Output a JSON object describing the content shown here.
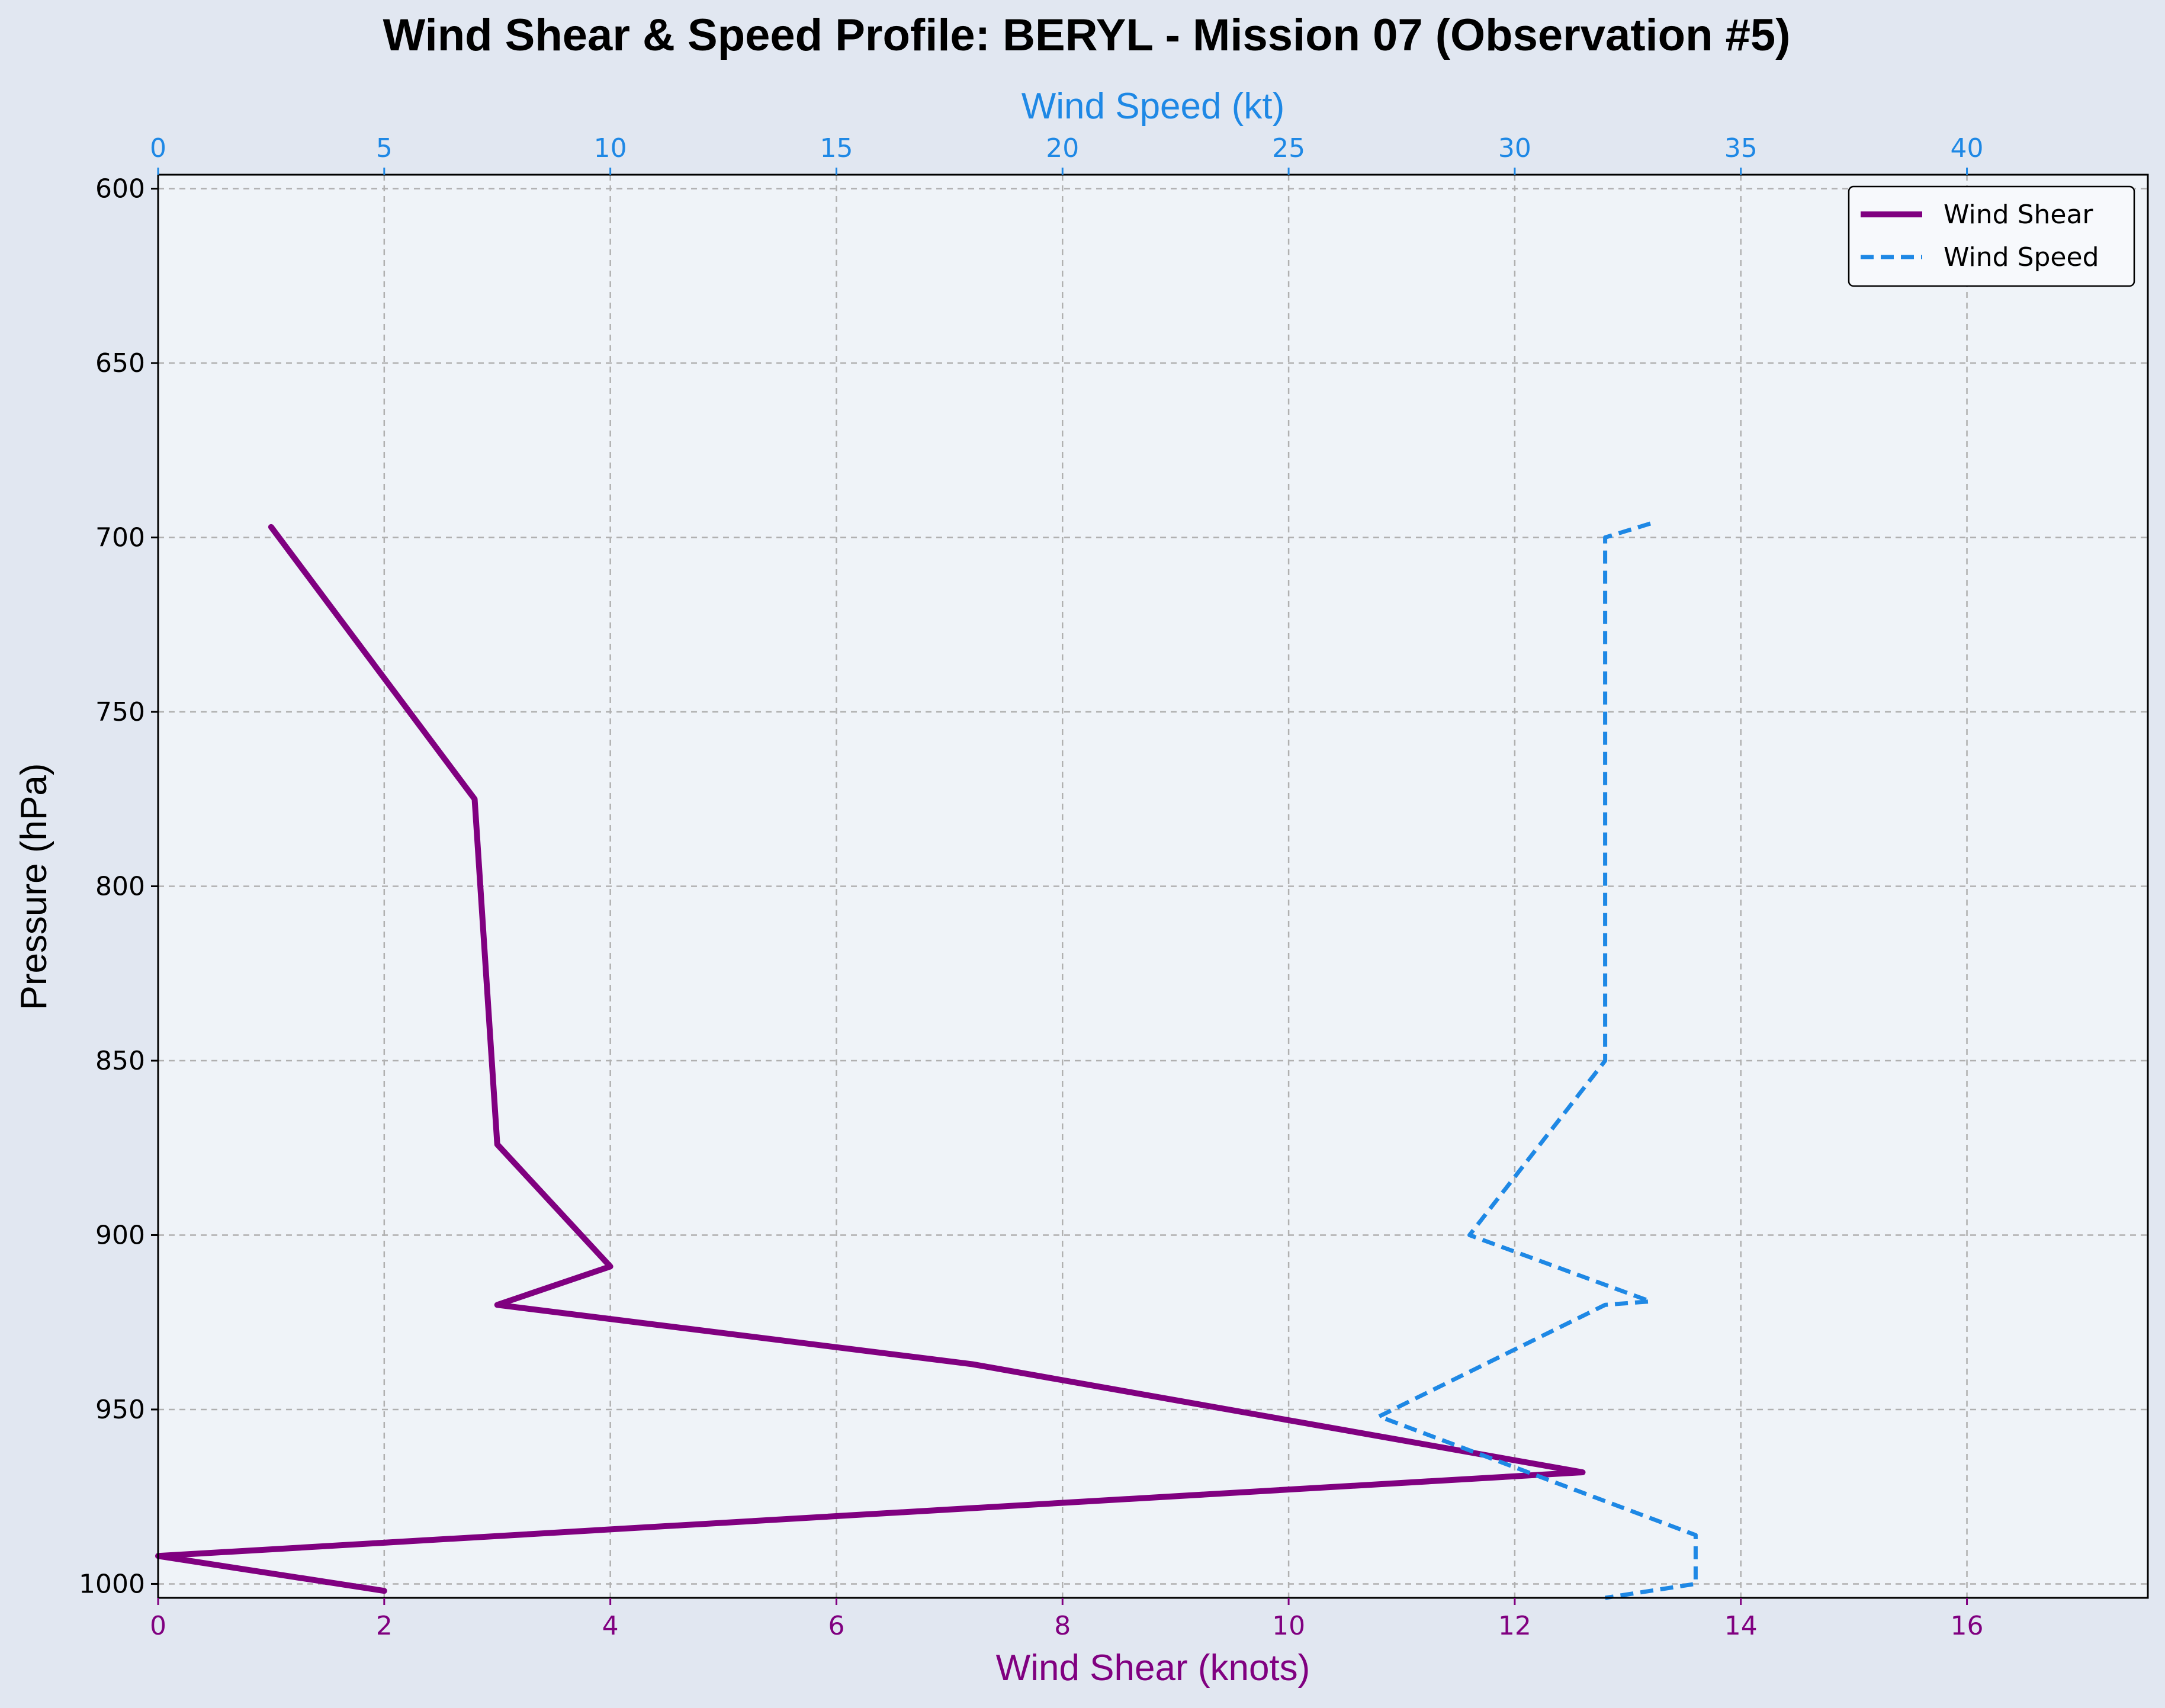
{
  "chart_data": {
    "type": "line",
    "title": "Wind Shear & Speed Profile: BERYL - Mission 07 (Observation #5)",
    "ylabel": "Pressure (hPa)",
    "ylim": [
      1004,
      596
    ],
    "yticks": [
      600,
      650,
      700,
      750,
      800,
      850,
      900,
      950,
      1000
    ],
    "y_inverted": true,
    "bottom_axis": {
      "label": "Wind Shear (knots)",
      "xlim": [
        0,
        17.6
      ],
      "ticks": [
        0,
        2,
        4,
        6,
        8,
        10,
        12,
        14,
        16
      ],
      "color": "#800080"
    },
    "top_axis": {
      "label": "Wind Speed (kt)",
      "xlim": [
        0,
        44
      ],
      "ticks": [
        0,
        5,
        10,
        15,
        20,
        25,
        30,
        35,
        40
      ],
      "color": "#1e88e5"
    },
    "grid": true,
    "legend_position": "top-right",
    "series": [
      {
        "name": "Wind Shear",
        "axis": "bottom",
        "color": "#800080",
        "style": "solid",
        "points": [
          {
            "x": 1.0,
            "y": 697
          },
          {
            "x": 2.8,
            "y": 775
          },
          {
            "x": 3.0,
            "y": 874
          },
          {
            "x": 4.0,
            "y": 909
          },
          {
            "x": 3.0,
            "y": 920
          },
          {
            "x": 7.2,
            "y": 937
          },
          {
            "x": 12.6,
            "y": 968
          },
          {
            "x": 0.0,
            "y": 992
          },
          {
            "x": 2.0,
            "y": 1002
          }
        ]
      },
      {
        "name": "Wind Speed",
        "axis": "top",
        "color": "#1e88e5",
        "style": "dashed",
        "points": [
          {
            "x": 33.0,
            "y": 696
          },
          {
            "x": 32.0,
            "y": 700
          },
          {
            "x": 32.0,
            "y": 850
          },
          {
            "x": 29.0,
            "y": 900
          },
          {
            "x": 33.0,
            "y": 919
          },
          {
            "x": 32.0,
            "y": 920
          },
          {
            "x": 27.0,
            "y": 952
          },
          {
            "x": 34.0,
            "y": 986
          },
          {
            "x": 34.0,
            "y": 1000
          },
          {
            "x": 32.0,
            "y": 1004
          }
        ]
      }
    ]
  }
}
